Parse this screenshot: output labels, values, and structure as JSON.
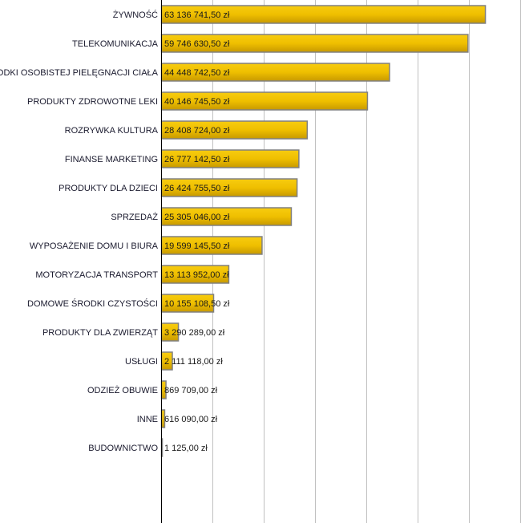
{
  "chart_data": {
    "type": "bar",
    "orientation": "horizontal",
    "title": "",
    "xlabel": "",
    "ylabel": "",
    "xlim": [
      0,
      70000000
    ],
    "grid": true,
    "bar_color": "#f0c000",
    "categories": [
      "ŻYWNOŚĆ",
      "TELEKOMUNIKACJA",
      "ŚRODKI OSOBISTEJ PIELĘGNACJI CIAŁA",
      "PRODUKTY ZDROWOTNE LEKI",
      "ROZRYWKA KULTURA",
      "FINANSE MARKETING",
      "PRODUKTY DLA DZIECI",
      "SPRZEDAŻ",
      "WYPOSAŻENIE DOMU I BIURA",
      "MOTORYZACJA TRANSPORT",
      "DOMOWE ŚRODKI CZYSTOŚCI",
      "PRODUKTY DLA ZWIERZĄT",
      "USŁUGI",
      "ODZIEŻ OBUWIE",
      "INNE",
      "BUDOWNICTWO"
    ],
    "values": [
      63136741.5,
      59746630.5,
      44448742.5,
      40146745.5,
      28408724.0,
      26777142.5,
      26424755.5,
      25305046.0,
      19599145.5,
      13113952.0,
      10155108.5,
      3290289.0,
      2111118.0,
      869709.0,
      616090.0,
      1125.0
    ],
    "labels": [
      "63 136 741,50 zł",
      "59 746 630,50 zł",
      "44 448 742,50 zł",
      "40 146 745,50 zł",
      "28 408 724,00 zł",
      "26 777 142,50 zł",
      "26 424 755,50 zł",
      "25 305 046,00 zł",
      "19 599 145,50 zł",
      "13 113 952,00 zł",
      "10 155 108,50 zł",
      "3 290 289,00 zł",
      "2 111 118,00 zł",
      "869 709,00 zł",
      "616 090,00 zł",
      "1 125,00 zł"
    ]
  }
}
